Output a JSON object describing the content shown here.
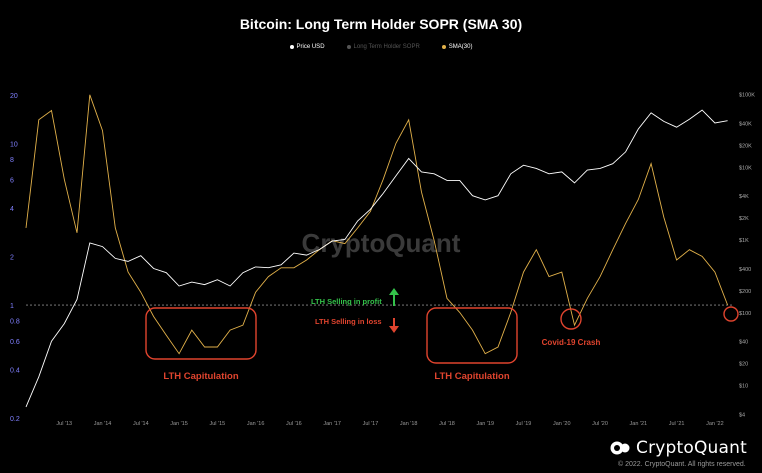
{
  "title": "Bitcoin: Long Term Holder SOPR (SMA 30)",
  "legend": [
    {
      "label": "Price USD",
      "color": "#ffffff"
    },
    {
      "label": "Long Term Holder SOPR",
      "color": "#555555"
    },
    {
      "label": "SMA(30)",
      "color": "#e2b14a"
    }
  ],
  "watermark": "CryptoQuant",
  "brand": {
    "name": "CryptoQuant",
    "copyright": "© 2022. CryptoQuant. All rights reserved."
  },
  "annotations": {
    "profit": "LTH Selling in profit",
    "loss": "LTH Selling in loss",
    "capitulation_1": "LTH Capitulation",
    "capitulation_2": "LTH Capitulation",
    "covid": "Covid-19 Crash"
  },
  "colors": {
    "background": "#000000",
    "sopr": "#e2b14a",
    "price": "#ffffff",
    "highlight": "#e0442e",
    "axis_left": "#8080ff",
    "axis_right": "#a8a8a8",
    "up_arrow": "#34c24a",
    "down_arrow": "#e0442e"
  },
  "chart_data": {
    "type": "line",
    "title": "Bitcoin: Long Term Holder SOPR (SMA 30)",
    "x_ticks": [
      "Jul '13",
      "Jan '14",
      "Jul '14",
      "Jan '15",
      "Jul '15",
      "Jan '16",
      "Jul '16",
      "Jan '17",
      "Jul '17",
      "Jan '18",
      "Jul '18",
      "Jan '19",
      "Jul '19",
      "Jan '20",
      "Jul '20",
      "Jan '21",
      "Jul '21",
      "Jan '22"
    ],
    "y_left_ticks": [
      0.2,
      0.4,
      0.6,
      0.8,
      1,
      2,
      4,
      6,
      8,
      10,
      20
    ],
    "y_left_scale": "log",
    "y_right_ticks": [
      "$4",
      "$10",
      "$20",
      "$40",
      "$100",
      "$200",
      "$400",
      "$1K",
      "$2K",
      "$4K",
      "$10K",
      "$20K",
      "$40K",
      "$100K"
    ],
    "y_right_scale": "log",
    "reference_line": 1,
    "series": [
      {
        "name": "SMA(30)",
        "axis": "left",
        "x": [
          "2013-01",
          "2013-03",
          "2013-05",
          "2013-07",
          "2013-09",
          "2013-11",
          "2014-01",
          "2014-03",
          "2014-05",
          "2014-07",
          "2014-09",
          "2014-11",
          "2015-01",
          "2015-03",
          "2015-05",
          "2015-07",
          "2015-09",
          "2015-11",
          "2016-01",
          "2016-03",
          "2016-05",
          "2016-07",
          "2016-09",
          "2016-11",
          "2017-01",
          "2017-03",
          "2017-05",
          "2017-07",
          "2017-09",
          "2017-11",
          "2018-01",
          "2018-03",
          "2018-05",
          "2018-07",
          "2018-09",
          "2018-11",
          "2019-01",
          "2019-03",
          "2019-05",
          "2019-07",
          "2019-09",
          "2019-11",
          "2020-01",
          "2020-03",
          "2020-05",
          "2020-07",
          "2020-09",
          "2020-11",
          "2021-01",
          "2021-03",
          "2021-05",
          "2021-07",
          "2021-09",
          "2021-11",
          "2022-01",
          "2022-03"
        ],
        "values": [
          3.0,
          14,
          16,
          6,
          2.8,
          20,
          12,
          3,
          1.6,
          1.2,
          0.85,
          0.65,
          0.5,
          0.7,
          0.55,
          0.55,
          0.7,
          0.75,
          1.2,
          1.5,
          1.7,
          1.7,
          1.9,
          2.2,
          2.5,
          2.4,
          3.0,
          3.8,
          6,
          10,
          14,
          5,
          2.5,
          1.1,
          0.9,
          0.7,
          0.5,
          0.55,
          0.9,
          1.6,
          2.2,
          1.5,
          1.6,
          0.75,
          1.1,
          1.5,
          2.2,
          3.2,
          4.5,
          7.5,
          3.5,
          1.9,
          2.2,
          2.0,
          1.6,
          1.0
        ]
      },
      {
        "name": "Price USD",
        "axis": "right",
        "x": [
          "2013-01",
          "2013-03",
          "2013-05",
          "2013-07",
          "2013-09",
          "2013-11",
          "2014-01",
          "2014-03",
          "2014-05",
          "2014-07",
          "2014-09",
          "2014-11",
          "2015-01",
          "2015-03",
          "2015-05",
          "2015-07",
          "2015-09",
          "2015-11",
          "2016-01",
          "2016-03",
          "2016-05",
          "2016-07",
          "2016-09",
          "2016-11",
          "2017-01",
          "2017-03",
          "2017-05",
          "2017-07",
          "2017-09",
          "2017-11",
          "2018-01",
          "2018-03",
          "2018-05",
          "2018-07",
          "2018-09",
          "2018-11",
          "2019-01",
          "2019-03",
          "2019-05",
          "2019-07",
          "2019-09",
          "2019-11",
          "2020-01",
          "2020-03",
          "2020-05",
          "2020-07",
          "2020-09",
          "2020-11",
          "2021-01",
          "2021-03",
          "2021-05",
          "2021-07",
          "2021-09",
          "2021-11",
          "2022-01",
          "2022-03"
        ],
        "values": [
          5,
          13,
          40,
          70,
          150,
          900,
          800,
          550,
          500,
          600,
          400,
          350,
          230,
          260,
          240,
          280,
          230,
          350,
          420,
          410,
          450,
          650,
          610,
          730,
          950,
          1000,
          1800,
          2600,
          4300,
          7500,
          13000,
          8500,
          8000,
          6500,
          6500,
          4000,
          3500,
          4000,
          8000,
          10500,
          9500,
          8000,
          8500,
          6000,
          9000,
          9500,
          11000,
          16000,
          33000,
          55000,
          42000,
          35000,
          45000,
          60000,
          40000,
          43000
        ]
      }
    ]
  }
}
